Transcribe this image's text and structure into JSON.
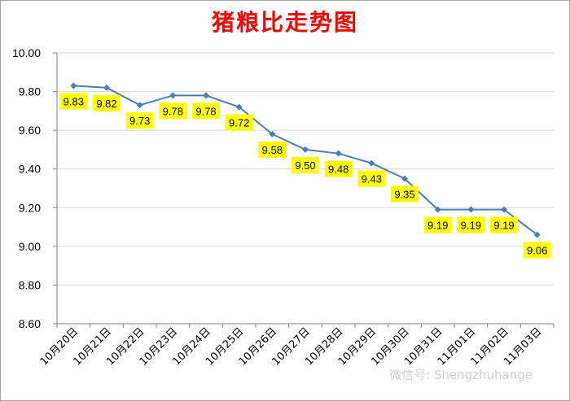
{
  "chart_data": {
    "type": "line",
    "title": "猪粮比走势图",
    "xlabel": "",
    "ylabel": "",
    "categories": [
      "10月20日",
      "10月21日",
      "10月22日",
      "10月23日",
      "10月24日",
      "10月25日",
      "10月26日",
      "10月27日",
      "10月28日",
      "10月29日",
      "10月30日",
      "10月31日",
      "11月01日",
      "11月02日",
      "11月03日"
    ],
    "series": [
      {
        "values": [
          9.83,
          9.82,
          9.73,
          9.78,
          9.78,
          9.72,
          9.58,
          9.5,
          9.48,
          9.43,
          9.35,
          9.19,
          9.19,
          9.19,
          9.06
        ]
      }
    ],
    "ylim": [
      8.6,
      10.0
    ],
    "yticks": [
      "8.60",
      "8.80",
      "9.00",
      "9.20",
      "9.40",
      "9.60",
      "9.80",
      "10.00"
    ],
    "grid": true,
    "legend": "none",
    "data_labels": true,
    "colors": {
      "line": "#4a7ebb",
      "title": "#ff0000",
      "label_bg": "#ffff00",
      "grid": "#d9d9d9"
    }
  },
  "watermark": "微信号: Shengzhuhange"
}
